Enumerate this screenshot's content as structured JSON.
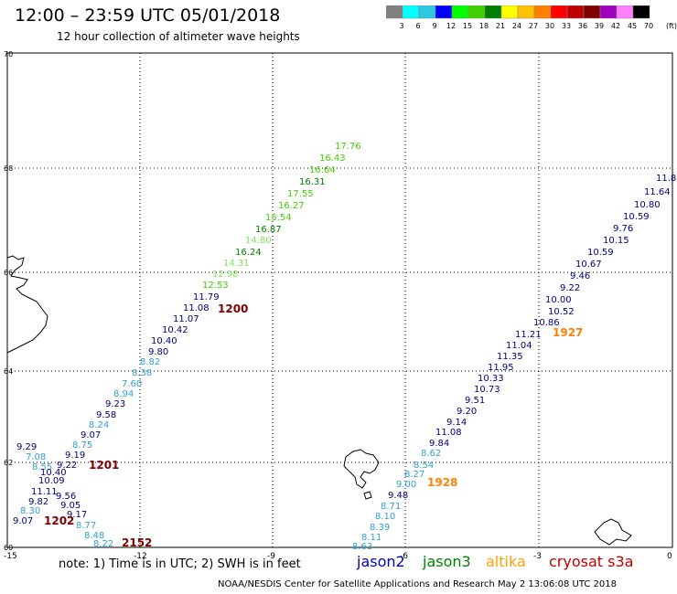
{
  "header": {
    "title": "12:00  –  23:59  UTC  05/01/2018",
    "subtitle": "12 hour collection of altimeter wave heights"
  },
  "colorbar": {
    "unit": "(ft)",
    "bins": [
      {
        "label": "3",
        "color": "#808080"
      },
      {
        "label": "6",
        "color": "#00ffff"
      },
      {
        "label": "9",
        "color": "#30c8e0"
      },
      {
        "label": "12",
        "color": "#0000ff"
      },
      {
        "label": "15",
        "color": "#00ff00"
      },
      {
        "label": "18",
        "color": "#40d000"
      },
      {
        "label": "21",
        "color": "#008000"
      },
      {
        "label": "24",
        "color": "#ffff00"
      },
      {
        "label": "27",
        "color": "#ffc000"
      },
      {
        "label": "30",
        "color": "#ff8000"
      },
      {
        "label": "33",
        "color": "#ff0000"
      },
      {
        "label": "36",
        "color": "#c00000"
      },
      {
        "label": "39",
        "color": "#800000"
      },
      {
        "label": "42",
        "color": "#a000c0"
      },
      {
        "label": "45",
        "color": "#ff80ff"
      },
      {
        "label": "70",
        "color": "#000000"
      }
    ]
  },
  "axes": {
    "x_ticks": [
      "-15",
      "-12",
      "-9",
      "-6",
      "-3",
      "0"
    ],
    "y_ticks": [
      "70",
      "68",
      "66",
      "64",
      "62",
      "60"
    ]
  },
  "tracks": [
    {
      "time": "1200",
      "time_color": "#800000",
      "points": [
        {
          "v": "17.76",
          "c": "#40d000"
        },
        {
          "v": "16.43",
          "c": "#40d000"
        },
        {
          "v": "16.64",
          "c": "#40d000"
        },
        {
          "v": "16.31",
          "c": "#008000"
        },
        {
          "v": "17.55",
          "c": "#40d000"
        },
        {
          "v": "16.27",
          "c": "#40d000"
        },
        {
          "v": "15.54",
          "c": "#40d000"
        },
        {
          "v": "16.87",
          "c": "#008000"
        },
        {
          "v": "14.80",
          "c": "#80e060"
        },
        {
          "v": "16.24",
          "c": "#008000"
        },
        {
          "v": "14.31",
          "c": "#80e060"
        },
        {
          "v": "12.98",
          "c": "#80e060"
        },
        {
          "v": "12.53",
          "c": "#40d000"
        },
        {
          "v": "11.79",
          "c": "#000080"
        },
        {
          "v": "11.08",
          "c": "#000080"
        },
        {
          "v": "11.07",
          "c": "#000080"
        },
        {
          "v": "10.42",
          "c": "#000080"
        },
        {
          "v": "10.40",
          "c": "#000080"
        },
        {
          "v": "9.80",
          "c": "#000080"
        },
        {
          "v": "8.82",
          "c": "#30a0d0"
        },
        {
          "v": "8.38",
          "c": "#30a0d0"
        },
        {
          "v": "7.60",
          "c": "#30a0d0"
        },
        {
          "v": "8.94",
          "c": "#30a0d0"
        },
        {
          "v": "9.23",
          "c": "#000080"
        },
        {
          "v": "9.58",
          "c": "#000080"
        },
        {
          "v": "8.24",
          "c": "#30a0d0"
        },
        {
          "v": "9.07",
          "c": "#000080"
        },
        {
          "v": "8.75",
          "c": "#30a0d0"
        },
        {
          "v": "9.19",
          "c": "#000080"
        },
        {
          "v": "9.22",
          "c": "#000080"
        }
      ]
    },
    {
      "time": "1201",
      "time_color": "#800000",
      "points": [
        {
          "v": "9.29",
          "c": "#000080"
        },
        {
          "v": "7.08",
          "c": "#30a0d0"
        },
        {
          "v": "8.55",
          "c": "#30a0d0"
        },
        {
          "v": "10.40",
          "c": "#000080"
        },
        {
          "v": "10.09",
          "c": "#000080"
        },
        {
          "v": "11.11",
          "c": "#000080"
        },
        {
          "v": "9.56",
          "c": "#000080"
        },
        {
          "v": "9.82",
          "c": "#000080"
        },
        {
          "v": "9.05",
          "c": "#000080"
        },
        {
          "v": "8.30",
          "c": "#30a0d0"
        },
        {
          "v": "9.17",
          "c": "#000080"
        },
        {
          "v": "9.07",
          "c": "#000080"
        }
      ]
    },
    {
      "time": "1202",
      "time_color": "#800000",
      "points": [
        {
          "v": "8.77",
          "c": "#30a0d0"
        },
        {
          "v": "8.48",
          "c": "#30a0d0"
        },
        {
          "v": "8.22",
          "c": "#30a0d0"
        }
      ]
    },
    {
      "time": "2152",
      "time_color": "#800000",
      "points": []
    },
    {
      "time": "1927",
      "time_color": "#ff8000",
      "points": [
        {
          "v": "11.8",
          "c": "#000080"
        },
        {
          "v": "11.64",
          "c": "#000080"
        },
        {
          "v": "10.80",
          "c": "#000080"
        },
        {
          "v": "10.59",
          "c": "#000080"
        },
        {
          "v": "9.76",
          "c": "#000080"
        },
        {
          "v": "10.15",
          "c": "#000080"
        },
        {
          "v": "10.59",
          "c": "#000080"
        },
        {
          "v": "10.67",
          "c": "#000080"
        },
        {
          "v": "9.46",
          "c": "#000080"
        },
        {
          "v": "9.22",
          "c": "#000080"
        },
        {
          "v": "10.00",
          "c": "#000080"
        },
        {
          "v": "10.52",
          "c": "#000080"
        },
        {
          "v": "10.86",
          "c": "#000080"
        },
        {
          "v": "11.21",
          "c": "#000080"
        },
        {
          "v": "11.04",
          "c": "#000080"
        },
        {
          "v": "11.35",
          "c": "#000080"
        },
        {
          "v": "11.95",
          "c": "#000080"
        },
        {
          "v": "10.33",
          "c": "#000080"
        },
        {
          "v": "10.73",
          "c": "#000080"
        },
        {
          "v": "9.51",
          "c": "#000080"
        },
        {
          "v": "9.20",
          "c": "#000080"
        },
        {
          "v": "9.14",
          "c": "#000080"
        },
        {
          "v": "11.08",
          "c": "#000080"
        },
        {
          "v": "9.84",
          "c": "#000080"
        }
      ]
    },
    {
      "time": "1928",
      "time_color": "#ff8000",
      "points": [
        {
          "v": "8.62",
          "c": "#30a0d0"
        },
        {
          "v": "8.54",
          "c": "#30a0d0"
        },
        {
          "v": "8.27",
          "c": "#30a0d0"
        },
        {
          "v": "9.00",
          "c": "#30a0d0"
        },
        {
          "v": "9.48",
          "c": "#000080"
        },
        {
          "v": "8.71",
          "c": "#30a0d0"
        },
        {
          "v": "8.10",
          "c": "#30a0d0"
        },
        {
          "v": "8.39",
          "c": "#30a0d0"
        },
        {
          "v": "8.11",
          "c": "#30a0d0"
        },
        {
          "v": "8.63",
          "c": "#30a0d0"
        }
      ]
    }
  ],
  "legend": {
    "note": "note:  1) Time is in UTC;  2) SWH is in feet",
    "satellites": [
      {
        "name": "jason2",
        "color": "#0000c0"
      },
      {
        "name": "jason3",
        "color": "#008000"
      },
      {
        "name": "altika",
        "color": "#ffa000"
      },
      {
        "name": "cryosat s3a",
        "color": "#c00000"
      }
    ]
  },
  "footer": "NOAA/NESDIS Center for Satellite Applications and Research    May  2 13:06:08 UTC 2018"
}
